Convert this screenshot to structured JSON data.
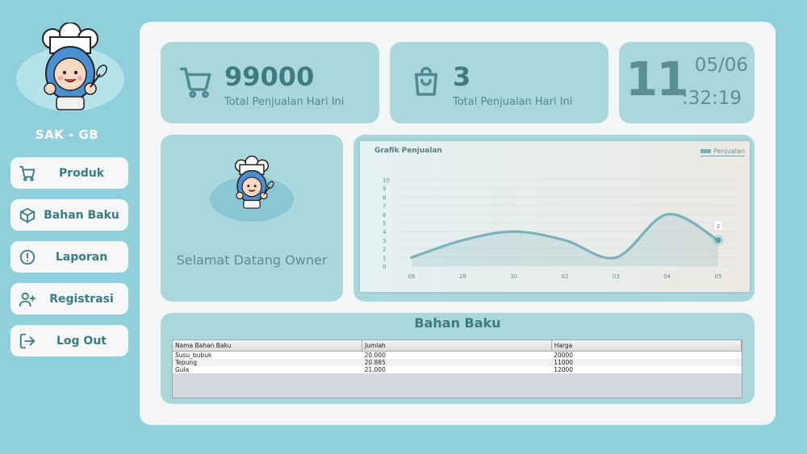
{
  "sidebar": {
    "brand": "SAK - GB",
    "items": [
      {
        "label": "Produk",
        "icon": "cart-icon"
      },
      {
        "label": "Bahan Baku",
        "icon": "box-icon"
      },
      {
        "label": "Laporan",
        "icon": "alert-circle-icon"
      },
      {
        "label": "Registrasi",
        "icon": "user-plus-icon"
      },
      {
        "label": "Log Out",
        "icon": "logout-icon"
      }
    ]
  },
  "stats": {
    "sales_value": "99000",
    "sales_label": "Total Penjualan Hari Ini",
    "count_value": "3",
    "count_label": "Total Penjualan Hari Ini"
  },
  "clock": {
    "hour": "11",
    "date": "05/06",
    "time": ":32:19"
  },
  "welcome": "Selamat Datang Owner",
  "chart_data": {
    "type": "area",
    "title": "Grafik Penjualan",
    "categories": [
      "06",
      "28",
      "30",
      "02",
      "03",
      "04",
      "05"
    ],
    "series": [
      {
        "name": "Penjualan",
        "values": [
          1,
          3,
          4,
          3,
          1,
          6,
          3
        ]
      }
    ],
    "point_label": "3",
    "ylim": [
      0,
      10
    ],
    "yticks": [
      "0",
      "1",
      "2",
      "3",
      "4",
      "5",
      "6",
      "7",
      "8",
      "9",
      "10"
    ],
    "grid": true,
    "legend": "top-right",
    "color": "#7ab2bb"
  },
  "bahan_baku": {
    "title": "Bahan Baku",
    "columns": [
      "Nama Bahan Baku",
      "Jumlah",
      "Harga"
    ],
    "rows": [
      [
        "Susu_bubuk",
        "20.000",
        "20000"
      ],
      [
        "Tepung",
        "20.885",
        "11000"
      ],
      [
        "Gula",
        "21.000",
        "12000"
      ]
    ]
  },
  "colors": {
    "background": "#8fd0dc",
    "card": "#a9d7dc",
    "accent": "#3f7c82"
  }
}
